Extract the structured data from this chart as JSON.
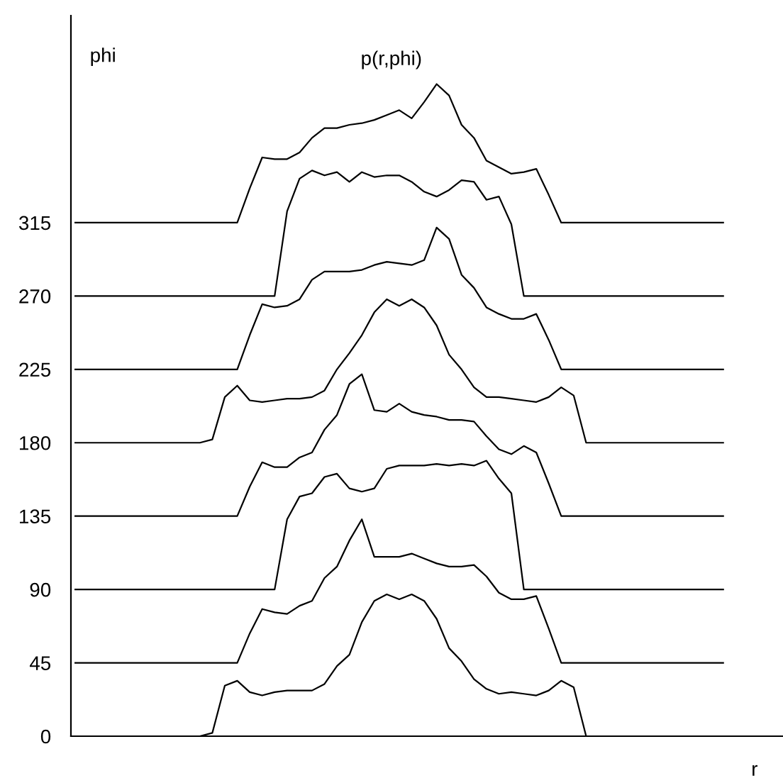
{
  "chart_data": {
    "type": "line",
    "title": "p(r,phi)",
    "ylabel": "phi",
    "xlabel": "r",
    "categories": [
      null,
      null,
      null,
      null,
      null,
      null,
      null,
      null,
      null,
      null,
      null,
      null,
      null,
      null,
      null,
      null,
      null,
      null,
      null,
      null,
      null,
      null,
      null,
      null,
      null,
      null,
      null,
      null,
      null,
      null,
      null,
      null,
      null,
      null,
      null,
      null,
      null,
      null,
      null,
      null,
      null,
      null,
      null,
      null,
      null,
      null,
      null,
      null,
      null,
      null,
      null,
      null,
      null
    ],
    "ylim": [
      0,
      442
    ],
    "yticks": [
      0,
      45,
      90,
      135,
      180,
      225,
      270,
      315
    ],
    "grid": false,
    "legend": false,
    "marker": "none",
    "line_style": "solid",
    "series": [
      {
        "color": "#000000",
        "values": [
          0,
          0,
          0,
          0,
          0,
          0,
          0,
          0,
          0,
          0,
          0,
          2,
          31,
          34,
          27,
          25,
          27,
          28,
          28,
          28,
          32,
          43,
          50,
          70,
          83,
          87,
          84,
          87,
          83,
          72,
          54,
          46,
          35,
          29,
          26,
          27,
          26,
          25,
          28,
          34,
          30,
          0,
          0,
          0,
          0,
          0,
          0,
          0,
          0,
          0,
          0,
          0,
          0
        ]
      },
      {
        "color": "#000000",
        "values": [
          45,
          45,
          45,
          45,
          45,
          45,
          45,
          45,
          45,
          45,
          45,
          45,
          45,
          45,
          63,
          78,
          76,
          75,
          80,
          83,
          97,
          104,
          120,
          133,
          110,
          110,
          110,
          112,
          109,
          106,
          104,
          104,
          105,
          98,
          88,
          84,
          84,
          86,
          66,
          45,
          45,
          45,
          45,
          45,
          45,
          45,
          45,
          45,
          45,
          45,
          45,
          45,
          45
        ]
      },
      {
        "color": "#000000",
        "values": [
          90,
          90,
          90,
          90,
          90,
          90,
          90,
          90,
          90,
          90,
          90,
          90,
          90,
          90,
          90,
          90,
          90,
          133,
          147,
          149,
          159,
          161,
          152,
          150,
          152,
          164,
          166,
          166,
          166,
          167,
          166,
          167,
          166,
          169,
          158,
          149,
          90,
          90,
          90,
          90,
          90,
          90,
          90,
          90,
          90,
          90,
          90,
          90,
          90,
          90,
          90,
          90,
          90
        ]
      },
      {
        "color": "#000000",
        "values": [
          135,
          135,
          135,
          135,
          135,
          135,
          135,
          135,
          135,
          135,
          135,
          135,
          135,
          135,
          153,
          168,
          165,
          165,
          171,
          174,
          188,
          197,
          216,
          222,
          200,
          199,
          204,
          199,
          197,
          196,
          194,
          194,
          193,
          184,
          176,
          173,
          178,
          174,
          155,
          135,
          135,
          135,
          135,
          135,
          135,
          135,
          135,
          135,
          135,
          135,
          135,
          135,
          135
        ]
      },
      {
        "color": "#000000",
        "values": [
          180,
          180,
          180,
          180,
          180,
          180,
          180,
          180,
          180,
          180,
          180,
          182,
          208,
          215,
          206,
          205,
          206,
          207,
          207,
          208,
          212,
          225,
          235,
          246,
          260,
          268,
          264,
          268,
          263,
          252,
          234,
          225,
          214,
          208,
          208,
          207,
          206,
          205,
          208,
          214,
          209,
          180,
          180,
          180,
          180,
          180,
          180,
          180,
          180,
          180,
          180,
          180,
          180
        ]
      },
      {
        "color": "#000000",
        "values": [
          225,
          225,
          225,
          225,
          225,
          225,
          225,
          225,
          225,
          225,
          225,
          225,
          225,
          225,
          246,
          265,
          263,
          264,
          268,
          280,
          285,
          285,
          285,
          286,
          289,
          291,
          290,
          289,
          292,
          312,
          305,
          283,
          275,
          263,
          259,
          256,
          256,
          259,
          243,
          225,
          225,
          225,
          225,
          225,
          225,
          225,
          225,
          225,
          225,
          225,
          225,
          225,
          225
        ]
      },
      {
        "color": "#000000",
        "values": [
          270,
          270,
          270,
          270,
          270,
          270,
          270,
          270,
          270,
          270,
          270,
          270,
          270,
          270,
          270,
          270,
          270,
          322,
          342,
          347,
          344,
          346,
          340,
          346,
          343,
          344,
          344,
          340,
          334,
          331,
          335,
          341,
          340,
          329,
          331,
          314,
          270,
          270,
          270,
          270,
          270,
          270,
          270,
          270,
          270,
          270,
          270,
          270,
          270,
          270,
          270,
          270,
          270
        ]
      },
      {
        "color": "#000000",
        "values": [
          315,
          315,
          315,
          315,
          315,
          315,
          315,
          315,
          315,
          315,
          315,
          315,
          315,
          315,
          336,
          355,
          354,
          354,
          358,
          367,
          373,
          373,
          375,
          376,
          378,
          381,
          384,
          379,
          389,
          400,
          393,
          375,
          367,
          353,
          349,
          345,
          346,
          348,
          332,
          315,
          315,
          315,
          315,
          315,
          315,
          315,
          315,
          315,
          315,
          315,
          315,
          315,
          315
        ]
      }
    ]
  }
}
